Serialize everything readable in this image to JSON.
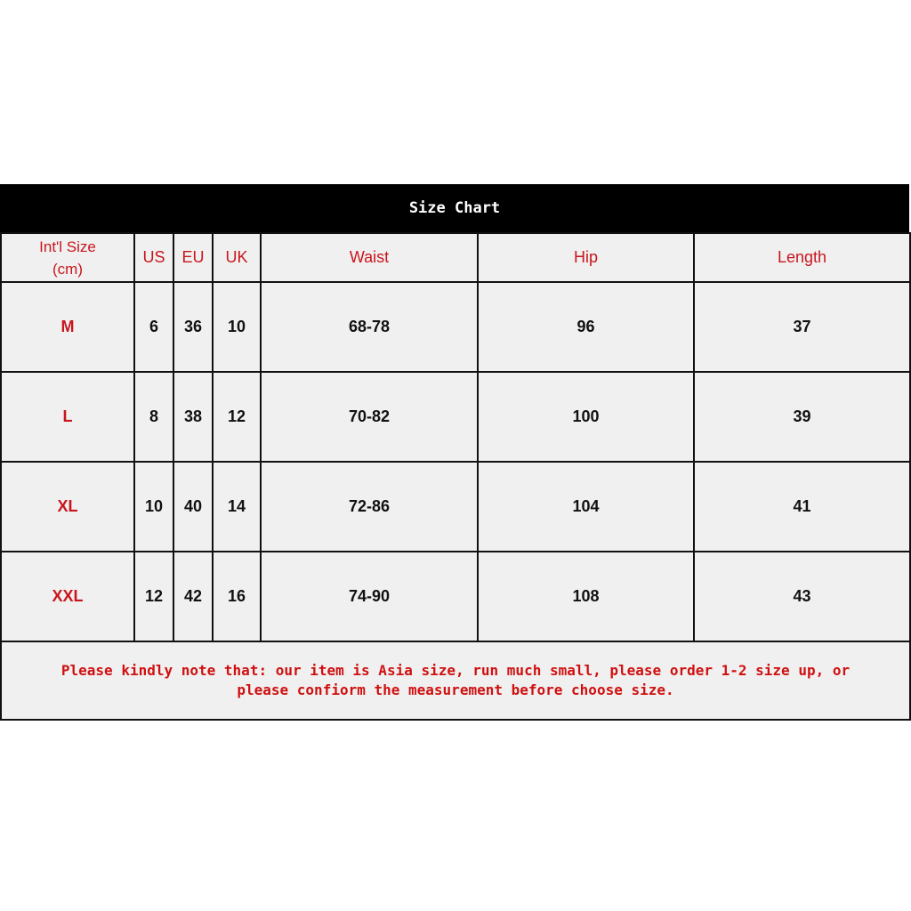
{
  "title": "Size Chart",
  "headers": {
    "intl_line1": "Int'l Size",
    "intl_line2": "(cm)",
    "us": "US",
    "eu": "EU",
    "uk": "UK",
    "waist": "Waist",
    "hip": "Hip",
    "length": "Length"
  },
  "rows": [
    {
      "size": "M",
      "us": "6",
      "eu": "36",
      "uk": "10",
      "waist": "68-78",
      "hip": "96",
      "length": "37"
    },
    {
      "size": "L",
      "us": "8",
      "eu": "38",
      "uk": "12",
      "waist": "70-82",
      "hip": "100",
      "length": "39"
    },
    {
      "size": "XL",
      "us": "10",
      "eu": "40",
      "uk": "14",
      "waist": "72-86",
      "hip": "104",
      "length": "41"
    },
    {
      "size": "XXL",
      "us": "12",
      "eu": "42",
      "uk": "16",
      "waist": "74-90",
      "hip": "108",
      "length": "43"
    }
  ],
  "note": {
    "line1": "Please  kindly note that: our item is Asia size, run much small, please order 1-2 size up, or",
    "line2": "please confiorm the measurement before choose size."
  },
  "colors": {
    "accent_red": "#c8161d",
    "title_bg": "#000000",
    "cell_bg": "#f0f0f0"
  }
}
